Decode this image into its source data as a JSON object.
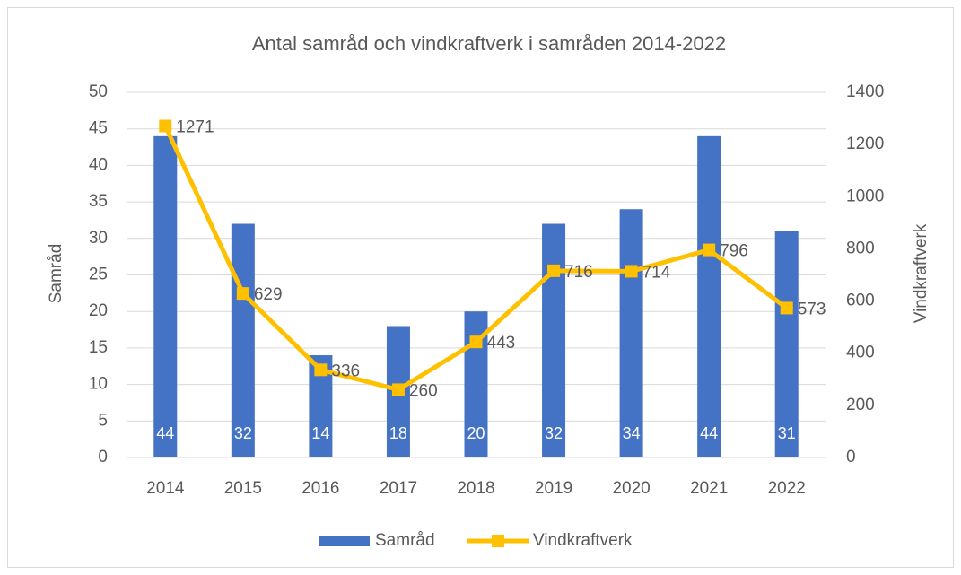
{
  "chart_data": {
    "type": "combo",
    "title": "Antal samråd och vindkraftverk i samråden 2014-2022",
    "categories": [
      "2014",
      "2015",
      "2016",
      "2017",
      "2018",
      "2019",
      "2020",
      "2021",
      "2022"
    ],
    "series": [
      {
        "name": "Samråd",
        "type": "bar",
        "color": "#4472c4",
        "values": [
          44,
          32,
          14,
          18,
          20,
          32,
          34,
          44,
          31
        ]
      },
      {
        "name": "Vindkraftverk",
        "type": "line",
        "axis": "y2",
        "color": "#ffc000",
        "values": [
          1271,
          629,
          336,
          260,
          443,
          716,
          714,
          796,
          573
        ]
      }
    ],
    "y_label": "Samråd",
    "y2_label": "Vindkraftverk",
    "ylim": [
      0,
      50
    ],
    "yticks": [
      0,
      5,
      10,
      15,
      20,
      25,
      30,
      35,
      40,
      45,
      50
    ],
    "y2lim": [
      0,
      1400
    ],
    "y2ticks": [
      0,
      200,
      400,
      600,
      800,
      1000,
      1200,
      1400
    ],
    "grid": true,
    "legend": "bottom"
  }
}
